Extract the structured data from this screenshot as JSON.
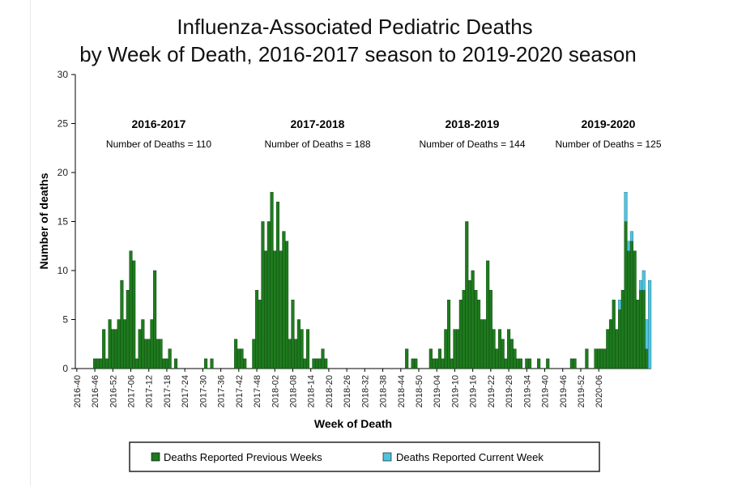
{
  "chart_data": {
    "type": "bar",
    "stacked": true,
    "title_line1": "Influenza-Associated Pediatric Deaths",
    "title_line2": "by Week of Death, 2016-2017 season to 2019-2020 season",
    "xlabel": "Week of Death",
    "ylabel": "Number of deaths",
    "ylim": [
      0,
      30
    ],
    "yticks": [
      0,
      5,
      10,
      15,
      20,
      25,
      30
    ],
    "grid": false,
    "legend_position": "bottom",
    "colors": {
      "previous": "#1e7a1e",
      "current": "#4fc3de"
    },
    "x_tick_labels": [
      "2016-40",
      "2016-46",
      "2016-52",
      "2017-06",
      "2017-12",
      "2017-18",
      "2017-24",
      "2017-30",
      "2017-36",
      "2017-42",
      "2017-48",
      "2018-02",
      "2018-08",
      "2018-14",
      "2018-20",
      "2018-26",
      "2018-32",
      "2018-38",
      "2018-44",
      "2018-50",
      "2019-04",
      "2019-10",
      "2019-16",
      "2019-22",
      "2019-28",
      "2019-34",
      "2019-40",
      "2019-46",
      "2019-52",
      "2020-06"
    ],
    "seasons": [
      {
        "label": "2016-2017",
        "count_text": "Number of Deaths = 110"
      },
      {
        "label": "2017-2018",
        "count_text": "Number of Deaths = 188"
      },
      {
        "label": "2018-2019",
        "count_text": "Number of Deaths = 144"
      },
      {
        "label": "2019-2020",
        "count_text": "Number of Deaths = 125"
      }
    ],
    "series": [
      {
        "name": "Deaths Reported Previous Weeks",
        "values": [
          0,
          0,
          0,
          0,
          0,
          0,
          1,
          1,
          1,
          4,
          1,
          5,
          4,
          4,
          5,
          9,
          5,
          8,
          12,
          11,
          1,
          4,
          5,
          3,
          3,
          5,
          10,
          3,
          3,
          1,
          1,
          2,
          0,
          1,
          0,
          0,
          0,
          0,
          0,
          0,
          0,
          0,
          0,
          1,
          0,
          1,
          0,
          0,
          0,
          0,
          0,
          0,
          0,
          3,
          2,
          2,
          1,
          0,
          0,
          3,
          8,
          7,
          15,
          12,
          15,
          18,
          12,
          17,
          12,
          14,
          13,
          3,
          7,
          3,
          5,
          4,
          1,
          4,
          0,
          1,
          1,
          1,
          2,
          1,
          0,
          0,
          0,
          0,
          0,
          0,
          0,
          0,
          0,
          0,
          0,
          0,
          0,
          0,
          0,
          0,
          0,
          0,
          0,
          0,
          0,
          0,
          0,
          0,
          0,
          0,
          2,
          0,
          1,
          1,
          0,
          0,
          0,
          0,
          2,
          1,
          1,
          2,
          1,
          4,
          7,
          1,
          4,
          4,
          7,
          8,
          15,
          9,
          10,
          8,
          7,
          5,
          5,
          11,
          8,
          4,
          2,
          4,
          3,
          1,
          4,
          3,
          2,
          1,
          1,
          0,
          1,
          1,
          0,
          0,
          1,
          0,
          0,
          1,
          0,
          0,
          0,
          0,
          0,
          0,
          0,
          1,
          1,
          0,
          0,
          0,
          2,
          0,
          0,
          2,
          2,
          2,
          2,
          4,
          5,
          7,
          4,
          6,
          8,
          15,
          12,
          13,
          12,
          7,
          8,
          8,
          2,
          0
        ]
      },
      {
        "name": "Deaths Reported Current Week",
        "values": [
          0,
          0,
          0,
          0,
          0,
          0,
          0,
          0,
          0,
          0,
          0,
          0,
          0,
          0,
          0,
          0,
          0,
          0,
          0,
          0,
          0,
          0,
          0,
          0,
          0,
          0,
          0,
          0,
          0,
          0,
          0,
          0,
          0,
          0,
          0,
          0,
          0,
          0,
          0,
          0,
          0,
          0,
          0,
          0,
          0,
          0,
          0,
          0,
          0,
          0,
          0,
          0,
          0,
          0,
          0,
          0,
          0,
          0,
          0,
          0,
          0,
          0,
          0,
          0,
          0,
          0,
          0,
          0,
          0,
          0,
          0,
          0,
          0,
          0,
          0,
          0,
          0,
          0,
          0,
          0,
          0,
          0,
          0,
          0,
          0,
          0,
          0,
          0,
          0,
          0,
          0,
          0,
          0,
          0,
          0,
          0,
          0,
          0,
          0,
          0,
          0,
          0,
          0,
          0,
          0,
          0,
          0,
          0,
          0,
          0,
          0,
          0,
          0,
          0,
          0,
          0,
          0,
          0,
          0,
          0,
          0,
          0,
          0,
          0,
          0,
          0,
          0,
          0,
          0,
          0,
          0,
          0,
          0,
          0,
          0,
          0,
          0,
          0,
          0,
          0,
          0,
          0,
          0,
          0,
          0,
          0,
          0,
          0,
          0,
          0,
          0,
          0,
          0,
          0,
          0,
          0,
          0,
          0,
          0,
          0,
          0,
          0,
          0,
          0,
          0,
          0,
          0,
          0,
          0,
          0,
          0,
          0,
          0,
          0,
          0,
          0,
          0,
          0,
          0,
          0,
          0,
          1,
          0,
          3,
          1,
          1,
          0,
          0,
          1,
          2,
          3,
          9,
          3
        ]
      }
    ]
  }
}
